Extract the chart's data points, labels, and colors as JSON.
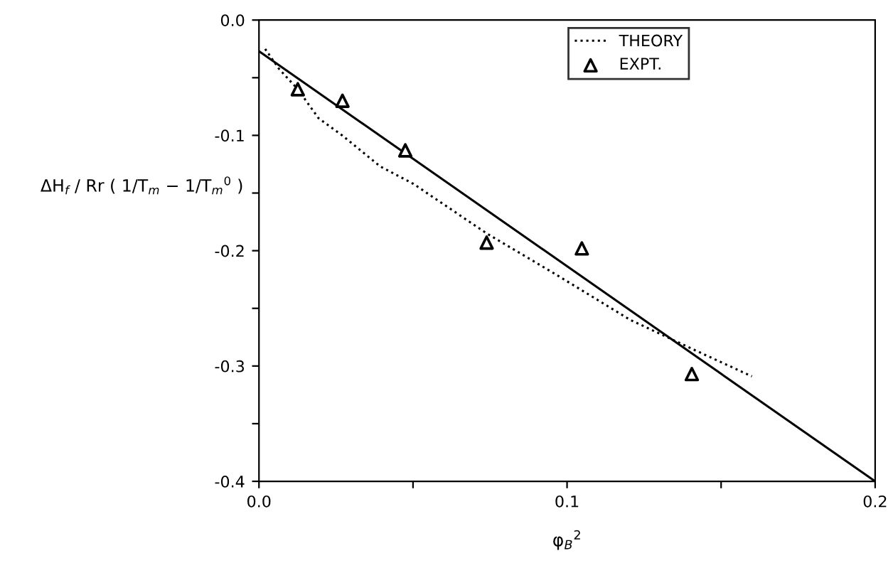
{
  "chart_data": {
    "type": "line",
    "xlabel": "φ$_{B}$$^{2}$",
    "ylabel": "ΔH$_{f}$ / Rr ( 1/T$_{m}$ − 1/T$_{m}$$^{0}$ )",
    "xlim": [
      0,
      0.2
    ],
    "ylim": [
      -0.4,
      0
    ],
    "xticks": [
      {
        "value": 0,
        "label": "0.0"
      },
      {
        "value": 0.05,
        "label": null
      },
      {
        "value": 0.1,
        "label": "0.1"
      },
      {
        "value": 0.15,
        "label": null
      },
      {
        "value": 0.2,
        "label": "0.2"
      }
    ],
    "yticks": [
      {
        "value": 0,
        "label": "0.0"
      },
      {
        "value": -0.05,
        "label": null
      },
      {
        "value": -0.1,
        "label": "-0.1"
      },
      {
        "value": -0.15,
        "label": null
      },
      {
        "value": -0.2,
        "label": "-0.2"
      },
      {
        "value": -0.25,
        "label": null
      },
      {
        "value": -0.3,
        "label": "-0.3"
      },
      {
        "value": -0.35,
        "label": null
      },
      {
        "value": -0.4,
        "label": "-0.4"
      }
    ],
    "grid": false,
    "legend": "top",
    "series": [
      {
        "name": "THEORY",
        "line_style": "dotted",
        "marker": "none",
        "color": "#000000",
        "x": [
          0.002,
          0.0064,
          0.0126,
          0.0193,
          0.027,
          0.0394,
          0.0501,
          0.0739,
          0.096,
          0.1205,
          0.1405,
          0.16
        ],
        "values": [
          -0.025,
          -0.042,
          -0.06,
          -0.085,
          -0.1,
          -0.127,
          -0.142,
          -0.185,
          -0.22,
          -0.26,
          -0.285,
          -0.309
        ]
      },
      {
        "name": "EXPT.",
        "type": "scatter",
        "marker": "triangle",
        "color": "#000000",
        "x": [
          0.0126,
          0.0271,
          0.0475,
          0.0739,
          0.1048,
          0.1405
        ],
        "values": [
          -0.06,
          -0.07,
          -0.113,
          -0.193,
          -0.198,
          -0.307
        ]
      },
      {
        "type": "line",
        "line_style": "solid",
        "marker": "none",
        "color": "#000000",
        "x": [
          0,
          0.2
        ],
        "values": [
          -0.027,
          -0.4
        ]
      }
    ]
  }
}
